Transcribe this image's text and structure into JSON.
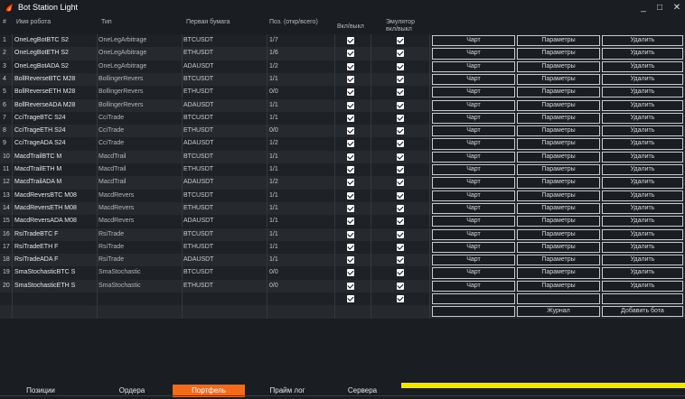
{
  "app": {
    "title": "Bot Station Light"
  },
  "window_controls": {
    "minimize": "_",
    "maximize": "□",
    "close": "✕"
  },
  "columns": {
    "num": "#",
    "name": "Имя робота",
    "type": "Тип",
    "security": "Первая бумага",
    "position": "Поз. (откр/всего)",
    "enabled": "Вкл/выкл",
    "emulator_line1": "Эмулятор",
    "emulator_line2": "вкл/выкл"
  },
  "buttons": {
    "chart": "Чарт",
    "params": "Параметры",
    "delete": "Удалить",
    "journal": "Журнал",
    "add_bot": "Добавить бота"
  },
  "rows": [
    {
      "num": "1",
      "name": "OneLegBotBTC S2",
      "type": "OneLegArbitrage",
      "security": "BTCUSDT",
      "position": "1/7"
    },
    {
      "num": "2",
      "name": "OneLegBotETH S2",
      "type": "OneLegArbitrage",
      "security": "ETHUSDT",
      "position": "1/6"
    },
    {
      "num": "3",
      "name": "OneLegBotADA S2",
      "type": "OneLegArbitrage",
      "security": "ADAUSDT",
      "position": "1/2"
    },
    {
      "num": "4",
      "name": "BollReverseBTC M28",
      "type": "BollingerRevers",
      "security": "BTCUSDT",
      "position": "1/1"
    },
    {
      "num": "5",
      "name": "BollReverseETH M28",
      "type": "BollingerRevers",
      "security": "ETHUSDT",
      "position": "0/0"
    },
    {
      "num": "6",
      "name": "BollReverseADA M28",
      "type": "BollingerRevers",
      "security": "ADAUSDT",
      "position": "1/1"
    },
    {
      "num": "7",
      "name": "CciTrageBTC S24",
      "type": "CciTrade",
      "security": "BTCUSDT",
      "position": "1/1"
    },
    {
      "num": "8",
      "name": "CciTrageETH S24",
      "type": "CciTrade",
      "security": "ETHUSDT",
      "position": "0/0"
    },
    {
      "num": "9",
      "name": "CciTrageADA S24",
      "type": "CciTrade",
      "security": "ADAUSDT",
      "position": "1/2"
    },
    {
      "num": "10",
      "name": "MacdTrailBTC M",
      "type": "MacdTrail",
      "security": "BTCUSDT",
      "position": "1/1"
    },
    {
      "num": "11",
      "name": "MacdTrailETH M",
      "type": "MacdTrail",
      "security": "ETHUSDT",
      "position": "1/1"
    },
    {
      "num": "12",
      "name": "MacdTrailADA M",
      "type": "MacdTrail",
      "security": "ADAUSDT",
      "position": "1/2"
    },
    {
      "num": "13",
      "name": "MacdReversBTC M08",
      "type": "MacdRevers",
      "security": "BTCUSDT",
      "position": "1/1"
    },
    {
      "num": "14",
      "name": "MacdReversETH M08",
      "type": "MacdRevers",
      "security": "ETHUSDT",
      "position": "1/1"
    },
    {
      "num": "15",
      "name": "MacdReversADA M08",
      "type": "MacdRevers",
      "security": "ADAUSDT",
      "position": "1/1"
    },
    {
      "num": "16",
      "name": "RsiTradeBTC F",
      "type": "RsiTrade",
      "security": "BTCUSDT",
      "position": "1/1"
    },
    {
      "num": "17",
      "name": "RsiTradeETH F",
      "type": "RsiTrade",
      "security": "ETHUSDT",
      "position": "1/1"
    },
    {
      "num": "18",
      "name": "RsiTradeADA F",
      "type": "RsiTrade",
      "security": "ADAUSDT",
      "position": "1/1"
    },
    {
      "num": "19",
      "name": "SmaStochasticBTC S",
      "type": "SmaStochastic",
      "security": "BTCUSDT",
      "position": "0/0"
    },
    {
      "num": "20",
      "name": "SmaStochasticETH S",
      "type": "SmaStochastic",
      "security": "ETHUSDT",
      "position": "0/0"
    }
  ],
  "tabs": [
    {
      "label": "Позиции",
      "active": false
    },
    {
      "label": "Ордера",
      "active": false
    },
    {
      "label": "Портфель",
      "active": true
    },
    {
      "label": "Прайм лог",
      "active": false
    },
    {
      "label": "Сервера подключения",
      "active": false
    }
  ],
  "colors": {
    "accent_tab": "#f26b1d",
    "progress_bar": "#f2e600",
    "background": "#1a1d21"
  },
  "icons": {
    "app_logo": "flame-logo-icon"
  }
}
